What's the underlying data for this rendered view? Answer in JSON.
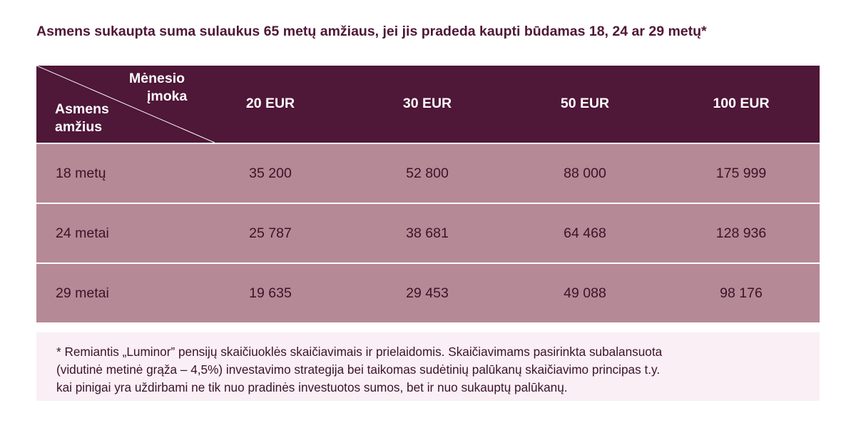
{
  "title": "Asmens sukaupta suma sulaukus 65 metų amžiaus, jei jis pradeda kaupti būdamas 18, 24 ar 29 metų*",
  "colors": {
    "header_bg": "#4f1738",
    "row_bg": "#b58995",
    "note_bg": "#f9eff5",
    "text_dark": "#3c1228"
  },
  "chart_data": {
    "type": "table",
    "title": "Asmens sukaupta suma sulaukus 65 metų amžiaus, jei jis pradeda kaupti būdamas 18, 24 ar 29 metų*",
    "corner_header": {
      "column_axis": [
        "Mėnesio",
        "įmoka"
      ],
      "row_axis": [
        "Asmens",
        "amžius"
      ]
    },
    "columns": [
      "20 EUR",
      "30 EUR",
      "50 EUR",
      "100 EUR"
    ],
    "rows": [
      {
        "label": "18 metų",
        "values": [
          "35 200",
          "52 800",
          "88 000",
          "175 999"
        ]
      },
      {
        "label": "24 metai",
        "values": [
          "25 787",
          "38 681",
          "64 468",
          "128 936"
        ]
      },
      {
        "label": "29 metai",
        "values": [
          "19 635",
          "29 453",
          "49 088",
          "98 176"
        ]
      }
    ]
  },
  "footnote": {
    "lines": [
      "* Remiantis „Luminor” pensijų skaičiuoklės skaičiavimais ir prielaidomis. Skaičiavimams pasirinkta subalansuota",
      "(vidutinė metinė grąža – 4,5%) investavimo strategija bei taikomas sudėtinių palūkanų skaičiavimo principas t.y.",
      "kai pinigai yra uždirbami ne tik nuo pradinės investuotos sumos, bet ir nuo sukauptų palūkanų."
    ]
  }
}
